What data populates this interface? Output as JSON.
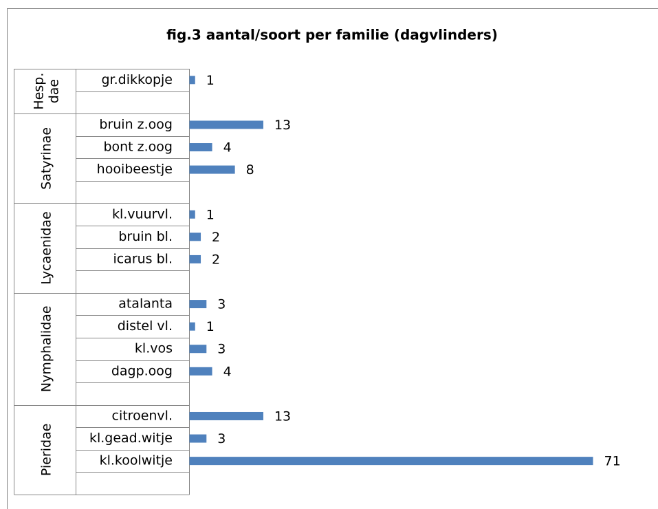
{
  "chart_data": {
    "type": "bar",
    "orientation": "horizontal",
    "title": "fig.3 aantal/soort per familie (dagvlinders)",
    "color": "#4f81bd",
    "groups": [
      {
        "label": [
          "Hesp.",
          "dae"
        ],
        "categories": [
          "gr.dikkopje",
          null
        ],
        "values": [
          1,
          null
        ]
      },
      {
        "label": [
          "Satyrinae"
        ],
        "categories": [
          "bruin z.oog",
          "bont z.oog",
          "hooibeestje",
          null
        ],
        "values": [
          13,
          4,
          8,
          null
        ]
      },
      {
        "label": [
          "Lycaenidae"
        ],
        "categories": [
          "kl.vuurvl.",
          "bruin bl.",
          "icarus bl.",
          null
        ],
        "values": [
          1,
          2,
          2,
          null
        ]
      },
      {
        "label": [
          "Nymphalidae"
        ],
        "categories": [
          "atalanta",
          "distel vl.",
          "kl.vos",
          "dagp.oog",
          null
        ],
        "values": [
          3,
          1,
          3,
          4,
          null
        ]
      },
      {
        "label": [
          "Pieridae"
        ],
        "categories": [
          "citroenvl.",
          "kl.gead.witje",
          "kl.koolwitje",
          null
        ],
        "values": [
          13,
          3,
          71,
          null
        ]
      }
    ]
  }
}
